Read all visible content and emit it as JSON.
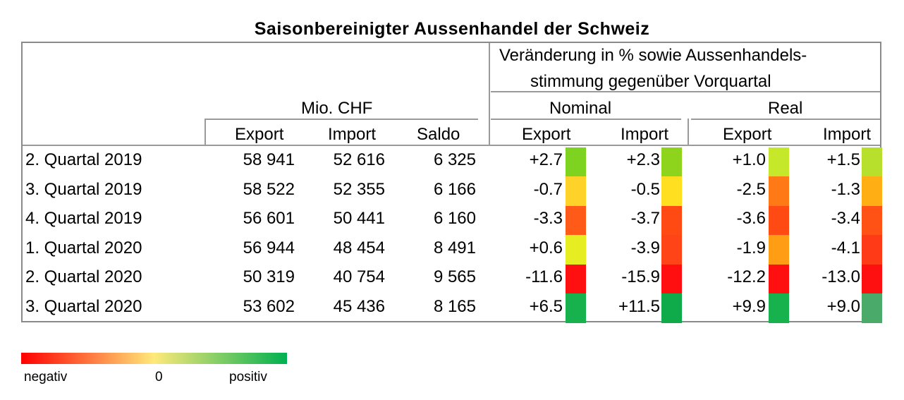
{
  "chart_data": {
    "type": "table",
    "title": "Saisonbereinigter Aussenhandel der Schweiz",
    "header": {
      "group_change": [
        "Veränderung in % sowie Aussenhandels-",
        "stimmung gegenüber Vorquartal"
      ],
      "group_mio": "Mio. CHF",
      "group_nominal": "Nominal",
      "group_real": "Real",
      "columns": [
        "Export",
        "Import",
        "Saldo",
        "Export",
        "Import",
        "Export",
        "Import"
      ]
    },
    "rows": [
      {
        "label": "2. Quartal 2019",
        "export": "58 941",
        "import": "52 616",
        "saldo": "6 325",
        "nom_export": "+2.7",
        "nom_import": "+2.3",
        "real_export": "+1.0",
        "real_import": "+1.5",
        "colors": [
          "#7ed321",
          "#8fd41c",
          "#c6e82b",
          "#b6e02b"
        ]
      },
      {
        "label": "3. Quartal 2019",
        "export": "58 522",
        "import": "52 355",
        "saldo": "6 166",
        "nom_export": "-0.7",
        "nom_import": "-0.5",
        "real_export": "-2.5",
        "real_import": "-1.3",
        "colors": [
          "#ffd22a",
          "#ffdf1f",
          "#ff7a17",
          "#ffaf14"
        ]
      },
      {
        "label": "4. Quartal 2019",
        "export": "56 601",
        "import": "50 441",
        "saldo": "6 160",
        "nom_export": "-3.3",
        "nom_import": "-3.7",
        "real_export": "-3.6",
        "real_import": "-3.4",
        "colors": [
          "#ff5a17",
          "#ff4a14",
          "#ff4a14",
          "#ff5214"
        ]
      },
      {
        "label": "1. Quartal 2020",
        "export": "56 944",
        "import": "48 454",
        "saldo": "8 491",
        "nom_export": "+0.6",
        "nom_import": "-3.9",
        "real_export": "-1.9",
        "real_import": "-4.1",
        "colors": [
          "#e6ee22",
          "#ff4417",
          "#ff9e14",
          "#ff3a17"
        ]
      },
      {
        "label": "2. Quartal 2020",
        "export": "50 319",
        "import": "40 754",
        "saldo": "9 565",
        "nom_export": "-11.6",
        "nom_import": "-15.9",
        "real_export": "-12.2",
        "real_import": "-13.0",
        "colors": [
          "#ff1010",
          "#ff0f10",
          "#ff1010",
          "#ff1010"
        ]
      },
      {
        "label": "3. Quartal 2020",
        "export": "53 602",
        "import": "45 436",
        "saldo": "8 165",
        "nom_export": "+6.5",
        "nom_import": "+11.5",
        "real_export": "+9.9",
        "real_import": "+9.0",
        "colors": [
          "#17b24e",
          "#0fab4a",
          "#17b24e",
          "#4aaa6a"
        ]
      }
    ],
    "legend": {
      "labels": [
        "negativ",
        "0",
        "positiv"
      ],
      "colors": [
        "#ff0000",
        "#ffe97a",
        "#00b050"
      ]
    }
  }
}
